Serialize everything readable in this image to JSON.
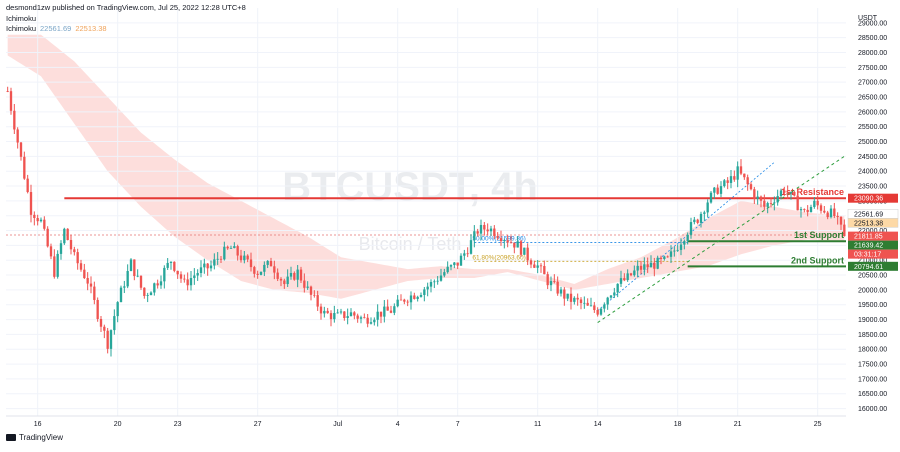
{
  "header": {
    "publish_line": "desmond1zw published on TradingView.com, Jul 25, 2022 12:28 UTC+8",
    "indicator_1": "Ichimoku",
    "indicator_2": "Ichimoku",
    "ichimoku_value_1": "22561.69",
    "ichimoku_value_2": "22513.38"
  },
  "watermark": {
    "symbol": "BTCUSDT, 4h",
    "name": "Bitcoin / Teth"
  },
  "footer": {
    "brand": "TradingView"
  },
  "colors": {
    "up": "#26a69a",
    "down": "#ef5350",
    "resistance": "#e53935",
    "support": "#2e7d32",
    "cloud_bear": "#fdd8d6",
    "cloud_bull": "#d6efd9",
    "fib_50": "#1e88e5",
    "fib_618": "#c9a227",
    "channel": "#2e9e3e"
  },
  "chart_data": {
    "type": "candlestick",
    "symbol": "BTCUSDT",
    "timeframe": "4h",
    "y_unit": "USDT",
    "ylim": [
      15750,
      29500
    ],
    "y_ticks": [
      16000,
      16500,
      17000,
      17500,
      18000,
      18500,
      19000,
      19500,
      20000,
      20500,
      21000,
      21500,
      22000,
      22500,
      23000,
      23500,
      24000,
      24500,
      25000,
      25500,
      26000,
      26500,
      27000,
      27500,
      28000,
      28500,
      29000
    ],
    "y_tick_labels": [
      "16000.00",
      "16500.00",
      "17000.00",
      "17500.00",
      "18000.00",
      "18500.00",
      "19000.00",
      "19500.00",
      "20000.00",
      "20500.00",
      "21000.00",
      "21500.00",
      "22000.00",
      "22500.00",
      "23000.00",
      "23500.00",
      "24000.00",
      "24500.00",
      "25000.00",
      "25500.00",
      "26000.00",
      "26500.00",
      "27000.00",
      "27500.00",
      "28000.00",
      "28500.00",
      "29000.00"
    ],
    "x_tick_labels": [
      "16",
      "20",
      "23",
      "27",
      "Jul",
      "4",
      "7",
      "11",
      "14",
      "18",
      "21",
      "25"
    ],
    "x_tick_index": [
      9,
      33,
      51,
      75,
      99,
      117,
      135,
      159,
      177,
      201,
      219,
      243
    ],
    "bar_count": 252,
    "close_path": [
      [
        0,
        26700
      ],
      [
        3,
        25000
      ],
      [
        7,
        22700
      ],
      [
        10,
        22300
      ],
      [
        14,
        20600
      ],
      [
        17,
        22000
      ],
      [
        20,
        21100
      ],
      [
        24,
        20300
      ],
      [
        27,
        19200
      ],
      [
        30,
        18200
      ],
      [
        33,
        19600
      ],
      [
        37,
        20900
      ],
      [
        41,
        19800
      ],
      [
        45,
        20300
      ],
      [
        49,
        21000
      ],
      [
        53,
        20200
      ],
      [
        57,
        20600
      ],
      [
        61,
        20800
      ],
      [
        64,
        21200
      ],
      [
        67,
        21400
      ],
      [
        71,
        21000
      ],
      [
        75,
        20600
      ],
      [
        79,
        20900
      ],
      [
        83,
        20200
      ],
      [
        87,
        20600
      ],
      [
        91,
        19800
      ],
      [
        95,
        19200
      ],
      [
        99,
        19100
      ],
      [
        103,
        19200
      ],
      [
        107,
        19000
      ],
      [
        111,
        19200
      ],
      [
        115,
        19300
      ],
      [
        119,
        19700
      ],
      [
        123,
        19900
      ],
      [
        127,
        20200
      ],
      [
        131,
        20600
      ],
      [
        135,
        20900
      ],
      [
        138,
        21400
      ],
      [
        141,
        22000
      ],
      [
        144,
        22100
      ],
      [
        147,
        21900
      ],
      [
        150,
        21700
      ],
      [
        153,
        21500
      ],
      [
        156,
        21100
      ],
      [
        159,
        20800
      ],
      [
        162,
        20300
      ],
      [
        165,
        20000
      ],
      [
        168,
        19700
      ],
      [
        171,
        19600
      ],
      [
        174,
        19400
      ],
      [
        177,
        19300
      ],
      [
        180,
        19800
      ],
      [
        183,
        20200
      ],
      [
        186,
        20400
      ],
      [
        189,
        20700
      ],
      [
        192,
        20800
      ],
      [
        195,
        20900
      ],
      [
        198,
        21000
      ],
      [
        201,
        21500
      ],
      [
        204,
        22000
      ],
      [
        207,
        22400
      ],
      [
        210,
        23000
      ],
      [
        213,
        23400
      ],
      [
        216,
        23600
      ],
      [
        219,
        24000
      ],
      [
        221,
        23700
      ],
      [
        224,
        23200
      ],
      [
        227,
        22800
      ],
      [
        230,
        23100
      ],
      [
        233,
        23400
      ],
      [
        236,
        23000
      ],
      [
        239,
        22600
      ],
      [
        242,
        22900
      ],
      [
        245,
        22700
      ],
      [
        248,
        22500
      ],
      [
        251,
        21812
      ]
    ],
    "price_labels": [
      {
        "text": "23090.36",
        "value": 23090.36,
        "color": "#e53935"
      },
      {
        "text": "22561.69",
        "value": 22561.69,
        "color": "#ffffff"
      },
      {
        "text": "22513.38",
        "value": 22513.38,
        "color": "#fdd9a6"
      },
      {
        "text": "21811.85",
        "value": 21811.85,
        "color": "#ef5350"
      },
      {
        "text": "03:31:17",
        "value": 21540,
        "color": "#ef5350"
      },
      {
        "text": "21639.42",
        "value": 21639.42,
        "color": "#2e7d32"
      },
      {
        "text": "20794.61",
        "value": 20794.61,
        "color": "#2e7d32"
      }
    ],
    "levels": [
      {
        "name": "1st Resistance",
        "value": 23090.36,
        "from_index": 17,
        "color": "#e53935"
      },
      {
        "name": "1st Support",
        "value": 21639.42,
        "from_index": 204,
        "color": "#2e7d32"
      },
      {
        "name": "2nd Support",
        "value": 20794.61,
        "from_index": 204,
        "color": "#2e7d32"
      }
    ],
    "fib_levels": [
      {
        "text": "50.00%(21599.86)",
        "value": 21599.86,
        "from_index": 140,
        "to_index": 204,
        "color": "#1e88e5"
      },
      {
        "text": "61.80%(20963.60)",
        "value": 20963.6,
        "from_index": 140,
        "to_index": 204,
        "color": "#c9a227"
      }
    ],
    "dashed_line": {
      "value": 21850,
      "color": "#e57373"
    },
    "channel": {
      "from": [
        177,
        18900
      ],
      "to": [
        251,
        24500
      ],
      "upper_from": [
        177,
        19300
      ],
      "upper_to": [
        230,
        24300
      ]
    },
    "cloud": {
      "upper": [
        [
          0,
          28600
        ],
        [
          10,
          28600
        ],
        [
          20,
          27700
        ],
        [
          30,
          26500
        ],
        [
          40,
          25300
        ],
        [
          50,
          24400
        ],
        [
          60,
          23600
        ],
        [
          70,
          23000
        ],
        [
          80,
          22400
        ],
        [
          90,
          21800
        ],
        [
          100,
          21100
        ],
        [
          110,
          20900
        ],
        [
          120,
          20700
        ],
        [
          130,
          20800
        ],
        [
          140,
          20700
        ],
        [
          150,
          20700
        ],
        [
          160,
          20500
        ],
        [
          170,
          20200
        ],
        [
          180,
          20700
        ],
        [
          190,
          21100
        ],
        [
          200,
          21700
        ],
        [
          210,
          22400
        ],
        [
          220,
          23000
        ],
        [
          230,
          22800
        ],
        [
          240,
          22600
        ],
        [
          251,
          22500
        ]
      ],
      "lower": [
        [
          0,
          27900
        ],
        [
          10,
          27200
        ],
        [
          20,
          25600
        ],
        [
          30,
          24000
        ],
        [
          40,
          22800
        ],
        [
          50,
          21800
        ],
        [
          60,
          21000
        ],
        [
          70,
          20300
        ],
        [
          80,
          20000
        ],
        [
          90,
          19900
        ],
        [
          100,
          19700
        ],
        [
          110,
          20000
        ],
        [
          120,
          20300
        ],
        [
          130,
          20400
        ],
        [
          140,
          20400
        ],
        [
          150,
          20600
        ],
        [
          160,
          20300
        ],
        [
          170,
          20000
        ],
        [
          180,
          20200
        ],
        [
          190,
          20400
        ],
        [
          200,
          20600
        ],
        [
          210,
          20800
        ],
        [
          220,
          21200
        ],
        [
          230,
          21500
        ],
        [
          240,
          21700
        ],
        [
          251,
          21600
        ]
      ]
    }
  }
}
